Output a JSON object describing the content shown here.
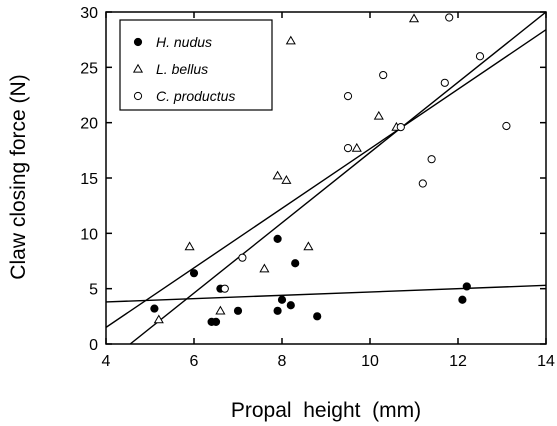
{
  "chart_data": {
    "type": "scatter",
    "xlabel": "Propal  height  (mm)",
    "ylabel": "Claw closing force (N)",
    "xlim": [
      4,
      14
    ],
    "ylim": [
      0,
      30
    ],
    "x_ticks": [
      4,
      6,
      8,
      10,
      12,
      14
    ],
    "y_ticks": [
      0,
      5,
      10,
      15,
      20,
      25,
      30
    ],
    "legend_position": "top-left",
    "series": [
      {
        "name": "H. nudus",
        "marker": "filled-circle",
        "points": [
          [
            5.1,
            3.2
          ],
          [
            6.0,
            6.4
          ],
          [
            6.4,
            2.0
          ],
          [
            6.5,
            2.0
          ],
          [
            6.6,
            5.0
          ],
          [
            7.0,
            3.0
          ],
          [
            7.9,
            3.0
          ],
          [
            7.9,
            9.5
          ],
          [
            8.0,
            4.0
          ],
          [
            8.2,
            3.5
          ],
          [
            8.3,
            7.3
          ],
          [
            8.8,
            2.5
          ],
          [
            12.1,
            4.0
          ],
          [
            12.2,
            5.2
          ]
        ],
        "fit": [
          [
            4.0,
            3.8
          ],
          [
            14.0,
            5.3
          ]
        ]
      },
      {
        "name": "L. bellus",
        "marker": "open-triangle",
        "points": [
          [
            5.2,
            2.2
          ],
          [
            5.9,
            8.8
          ],
          [
            6.6,
            3.0
          ],
          [
            7.6,
            6.8
          ],
          [
            7.9,
            15.2
          ],
          [
            8.1,
            14.8
          ],
          [
            8.2,
            27.4
          ],
          [
            8.6,
            8.8
          ],
          [
            9.7,
            17.7
          ],
          [
            10.2,
            20.6
          ],
          [
            10.6,
            19.6
          ],
          [
            11.0,
            29.4
          ]
        ],
        "fit": [
          [
            4.55,
            0.0
          ],
          [
            14.0,
            30.0
          ]
        ]
      },
      {
        "name": "C. productus",
        "marker": "open-circle",
        "points": [
          [
            6.7,
            5.0
          ],
          [
            7.1,
            7.8
          ],
          [
            9.5,
            17.7
          ],
          [
            9.5,
            22.4
          ],
          [
            10.3,
            24.3
          ],
          [
            10.7,
            19.6
          ],
          [
            11.2,
            14.5
          ],
          [
            11.4,
            16.7
          ],
          [
            11.7,
            23.6
          ],
          [
            11.8,
            29.5
          ],
          [
            12.5,
            26.0
          ],
          [
            13.1,
            19.7
          ]
        ],
        "fit": [
          [
            4.0,
            1.5
          ],
          [
            14.0,
            28.4
          ]
        ]
      }
    ]
  }
}
